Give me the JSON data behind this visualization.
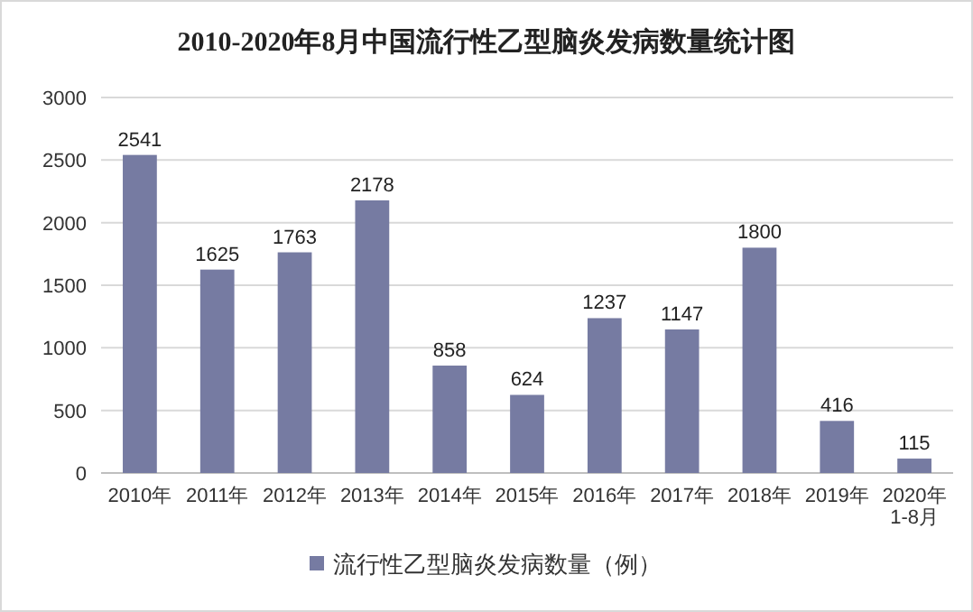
{
  "chart_data": {
    "type": "bar",
    "title": "2010-2020年8月中国流行性乙型脑炎发病数量统计图",
    "categories": [
      "2010年",
      "2011年",
      "2012年",
      "2013年",
      "2014年",
      "2015年",
      "2016年",
      "2017年",
      "2018年",
      "2019年",
      "2020年1-8月"
    ],
    "series": [
      {
        "name": "流行性乙型脑炎发病数量（例）",
        "color": "#767ba2",
        "values": [
          2541,
          1625,
          1763,
          2178,
          858,
          624,
          1237,
          1147,
          1800,
          416,
          115
        ]
      }
    ],
    "ylim": [
      0,
      3000
    ],
    "yticks": [
      0,
      500,
      1000,
      1500,
      2000,
      2500,
      3000
    ],
    "grid": "y",
    "legend": "bottom",
    "data_labels": true
  }
}
